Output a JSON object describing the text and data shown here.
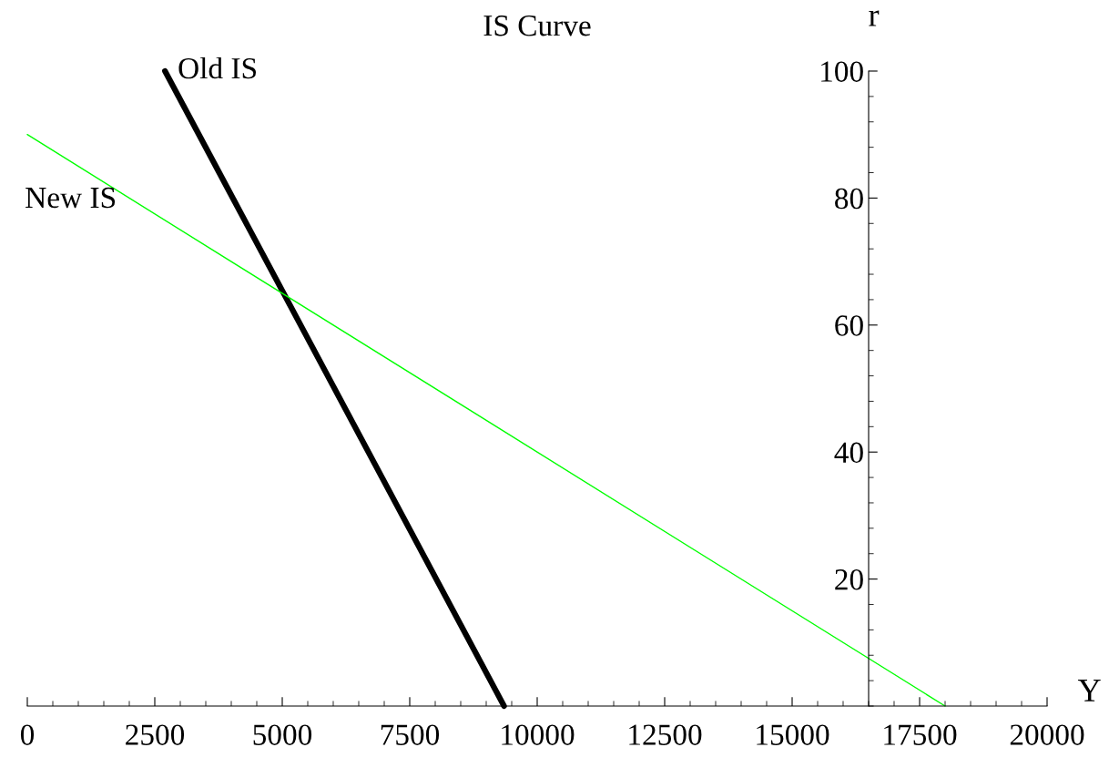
{
  "chart_data": {
    "type": "line",
    "title": "IS Curve",
    "xlabel": "Y",
    "ylabel": "r",
    "series": [
      {
        "x": [
          2700,
          9350
        ],
        "values": [
          100,
          0
        ],
        "color": "#000000"
      },
      {
        "x": [
          0,
          18000
        ],
        "values": [
          90,
          0
        ],
        "color": "#00ff00"
      }
    ],
    "xlim": [
      0,
      20000
    ],
    "xticks": [
      0,
      2500,
      5000,
      7500,
      10000,
      12500,
      15000,
      17500,
      20000
    ],
    "ylim": [
      0,
      100
    ],
    "yticks": [
      20,
      40,
      60,
      80,
      100
    ],
    "grid": false,
    "legend": false,
    "annotations": [
      "Old IS",
      "New IS"
    ]
  }
}
